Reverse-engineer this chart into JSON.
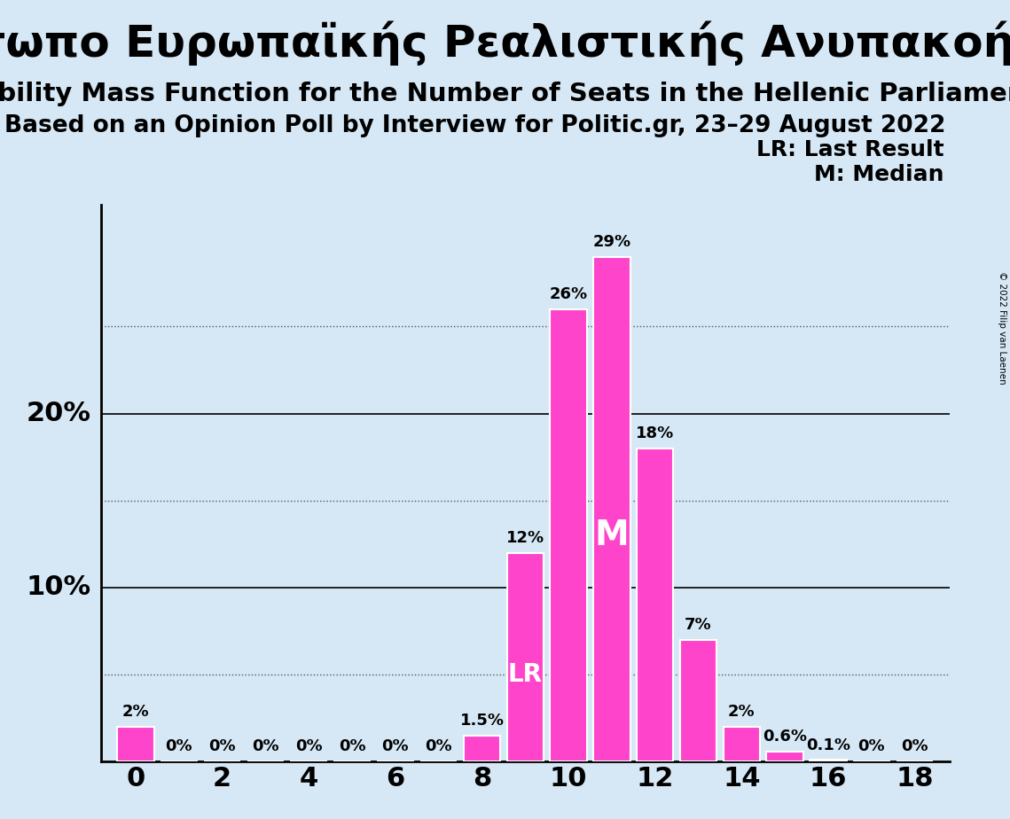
{
  "title1": "Μέτωπο Ευρωπαϊκής Ρεαλιστικής Ανυπακοής",
  "title2": "Probability Mass Function for the Number of Seats in the Hellenic Parliament",
  "title3": "Based on an Opinion Poll by Interview for Politic.gr, 23–29 August 2022",
  "copyright": "© 2022 Filip van Laenen",
  "seats": [
    0,
    1,
    2,
    3,
    4,
    5,
    6,
    7,
    8,
    9,
    10,
    11,
    12,
    13,
    14,
    15,
    16,
    17,
    18
  ],
  "probabilities": [
    2.0,
    0.0,
    0.0,
    0.0,
    0.0,
    0.0,
    0.0,
    0.0,
    1.5,
    12.0,
    26.0,
    29.0,
    18.0,
    7.0,
    2.0,
    0.6,
    0.1,
    0.0,
    0.0
  ],
  "bar_color": "#FF44CC",
  "background_color": "#D6E8F5",
  "lr_seat": 9,
  "median_seat": 11,
  "legend_lr": "LR: Last Result",
  "legend_m": "M: Median",
  "lr_label": "LR",
  "median_label": "M",
  "ylim": [
    0,
    32
  ],
  "solid_lines": [
    10,
    20
  ],
  "dotted_lines": [
    5,
    15,
    25
  ],
  "title1_fontsize": 36,
  "title2_fontsize": 21,
  "title3_fontsize": 19,
  "bar_label_fontsize": 13,
  "axis_label_fontsize": 22,
  "legend_fontsize": 18,
  "inner_label_fontsize_lr": 20,
  "inner_label_fontsize_m": 28
}
